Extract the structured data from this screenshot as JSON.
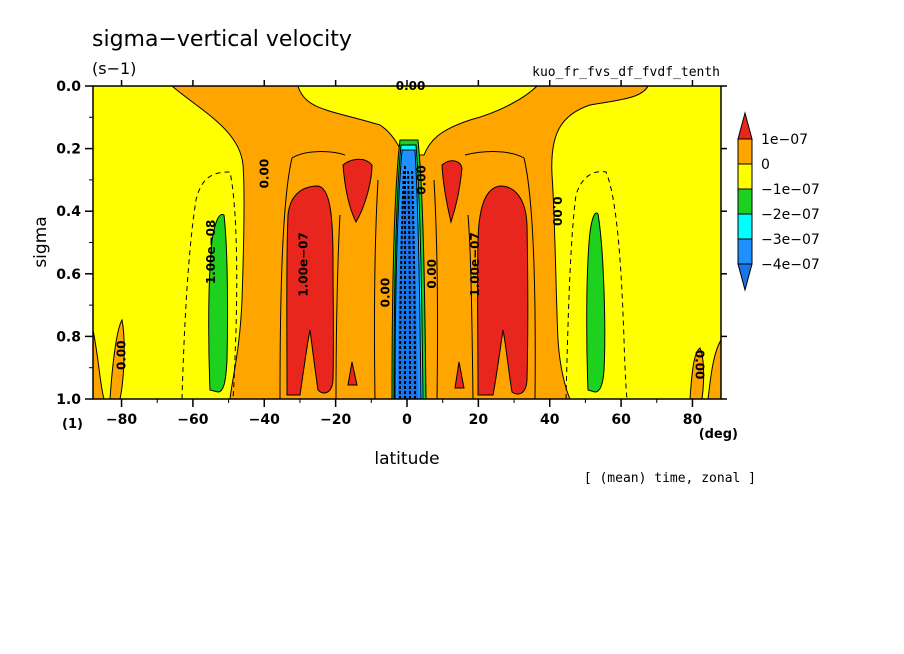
{
  "chart_data": {
    "type": "heatmap",
    "title": "sigma−vertical velocity",
    "units": "(s−1)",
    "experiment": "kuo_fr_fvs_df_fvdf_tenth",
    "footer": "[ (mean) time, zonal ]",
    "xlabel": "latitude",
    "ylabel": "sigma",
    "x_unit_label": "(deg)",
    "y_unit_label": "(1)",
    "xlim": [
      -88,
      88
    ],
    "ylim": [
      0.0,
      1.0
    ],
    "x_ticks": [
      -80,
      -60,
      -40,
      -20,
      0,
      20,
      40,
      60,
      80
    ],
    "y_ticks": [
      0.0,
      0.2,
      0.4,
      0.6,
      0.8,
      1.0
    ],
    "x_tick_labels": [
      "−80",
      "−60",
      "−40",
      "−20",
      "0",
      "20",
      "40",
      "60",
      "80"
    ],
    "y_tick_labels": [
      "0.0",
      "0.2",
      "0.4",
      "0.6",
      "0.8",
      "1.0"
    ],
    "colorbar": {
      "levels": [
        "1e−07",
        "0",
        "−1e−07",
        "−2e−07",
        "−3e−07",
        "−4e−07"
      ],
      "colors": [
        "#e8261d",
        "#ffa500",
        "#ffff00",
        "#1fd11f",
        "#00ffff",
        "#1e90ff",
        "#1874e8"
      ]
    },
    "contour_labels": [
      {
        "text": "0.00",
        "lat": 1,
        "sigma": 0.0,
        "rotate": 0
      },
      {
        "text": "0.00",
        "lat": -40,
        "sigma": 0.28,
        "rotate": -90
      },
      {
        "text": "0.00",
        "lat": 42,
        "sigma": 0.4,
        "rotate": 90
      },
      {
        "text": "0.00",
        "lat": -80,
        "sigma": 0.86,
        "rotate": -90
      },
      {
        "text": "0.00",
        "lat": 82,
        "sigma": 0.89,
        "rotate": 90
      },
      {
        "text": "1.00e−07",
        "lat": -29,
        "sigma": 0.57,
        "rotate": -90
      },
      {
        "text": "1.00e−07",
        "lat": 19,
        "sigma": 0.57,
        "rotate": -90
      },
      {
        "text": "1.00e−08",
        "lat": -55,
        "sigma": 0.53,
        "rotate": -90
      },
      {
        "text": "0.00",
        "lat": -6,
        "sigma": 0.66,
        "rotate": -90
      },
      {
        "text": "0.00",
        "lat": 7,
        "sigma": 0.6,
        "rotate": -90
      },
      {
        "text": "0.00",
        "lat": 4,
        "sigma": 0.3,
        "rotate": -90
      }
    ]
  }
}
